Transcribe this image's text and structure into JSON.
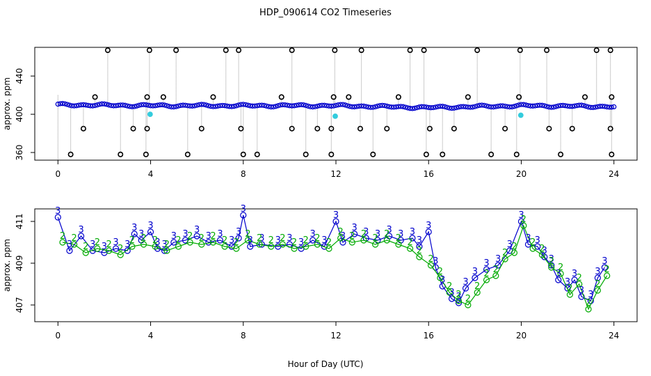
{
  "chart_data": [
    {
      "type": "scatter",
      "panel": "top",
      "title": "HDP_090614  CO2 Timeseries",
      "xlabel": "",
      "ylabel": "approx. ppm",
      "xlim": [
        -1,
        25
      ],
      "ylim": [
        352,
        470
      ],
      "xticks": [
        "0",
        "4",
        "8",
        "12",
        "16",
        "20",
        "24"
      ],
      "yticks": [
        "360",
        "400",
        "440"
      ],
      "grid": false,
      "colors": {
        "main": "#0000cc",
        "highlight": "#33ccdd",
        "outlier": "#000000",
        "connector": "#999999"
      },
      "baseline": {
        "x_start": 0,
        "x_end": 24,
        "levels": [
          [
            0,
            410
          ],
          [
            4,
            409
          ],
          [
            8,
            409
          ],
          [
            12,
            409
          ],
          [
            16,
            407
          ],
          [
            20,
            409
          ],
          [
            24,
            408
          ]
        ]
      },
      "high_outliers": [
        2.15,
        3.95,
        5.1,
        7.25,
        7.8,
        10.1,
        11.95,
        13.1,
        15.2,
        15.8,
        18.1,
        19.95,
        21.1,
        23.25,
        23.85
      ],
      "low_outliers": [
        0.55,
        2.7,
        3.8,
        5.6,
        8.0,
        8.6,
        10.7,
        11.8,
        13.6,
        15.9,
        16.6,
        18.7,
        19.8,
        21.7,
        23.9
      ],
      "mid_high_outliers": [
        1.6,
        3.85,
        4.55,
        6.7,
        9.65,
        11.9,
        12.55,
        14.7,
        17.7,
        19.9,
        22.75,
        23.9
      ],
      "mid_low_outliers": [
        1.1,
        3.25,
        3.85,
        6.2,
        7.9,
        10.1,
        11.2,
        11.8,
        13.05,
        14.2,
        16.05,
        17.1,
        19.3,
        21.2,
        22.2,
        23.85
      ],
      "low_values": {
        "high": 467,
        "mid_high": 418,
        "mid_low": 385,
        "low": 358
      },
      "highlight_points": [
        [
          3.98,
          400
        ],
        [
          11.97,
          398
        ],
        [
          19.98,
          399
        ]
      ]
    },
    {
      "type": "line",
      "panel": "bottom",
      "title": "",
      "xlabel": "Hour of Day (UTC)",
      "ylabel": "approx. ppm",
      "xlim": [
        -1,
        25
      ],
      "ylim": [
        406.2,
        411.6
      ],
      "xticks": [
        "0",
        "4",
        "8",
        "12",
        "16",
        "20",
        "24"
      ],
      "yticks": [
        "407",
        "409",
        "411"
      ],
      "grid": false,
      "series": [
        {
          "name": "3",
          "color": "#0000cc",
          "x": [
            0,
            0.5,
            1,
            1.5,
            2,
            2.5,
            3,
            3.3,
            3.6,
            4,
            4.3,
            4.6,
            5,
            5.5,
            6,
            6.5,
            7,
            7.5,
            7.8,
            8,
            8.3,
            8.8,
            9.5,
            10,
            10.5,
            11,
            11.5,
            12,
            12.3,
            12.8,
            13.3,
            13.8,
            14.3,
            14.8,
            15.3,
            15.6,
            16,
            16.3,
            16.6,
            17,
            17.3,
            17.6,
            18,
            18.5,
            19,
            19.5,
            20,
            20.3,
            20.7,
            21,
            21.3,
            21.6,
            22,
            22.3,
            22.6,
            23,
            23.3,
            23.6
          ],
          "y": [
            411.2,
            409.6,
            410.3,
            409.6,
            409.5,
            409.7,
            409.6,
            410.4,
            410.1,
            410.5,
            409.7,
            409.6,
            410.0,
            410.1,
            410.3,
            410.0,
            410.1,
            409.8,
            410.2,
            411.3,
            409.8,
            409.9,
            409.8,
            409.9,
            409.7,
            410.1,
            409.8,
            411.0,
            410.0,
            410.4,
            410.2,
            410.1,
            410.3,
            410.1,
            410.2,
            409.8,
            410.5,
            408.8,
            407.9,
            407.3,
            407.1,
            407.8,
            408.3,
            408.7,
            408.9,
            409.6,
            411.0,
            409.9,
            409.8,
            409.3,
            408.9,
            408.2,
            407.8,
            408.2,
            407.4,
            407.2,
            408.3,
            408.8
          ]
        },
        {
          "name": "2",
          "color": "#00aa00",
          "x": [
            0.2,
            0.7,
            1.2,
            1.7,
            2.2,
            2.7,
            3.2,
            3.7,
            4.2,
            4.7,
            5.2,
            5.7,
            6.2,
            6.7,
            7.2,
            7.7,
            8.2,
            8.7,
            9.2,
            9.7,
            10.2,
            10.7,
            11.2,
            11.7,
            12.2,
            12.7,
            13.2,
            13.7,
            14.2,
            14.7,
            15.2,
            15.6,
            16.1,
            16.5,
            16.9,
            17.3,
            17.7,
            18.1,
            18.5,
            18.9,
            19.3,
            19.7,
            20.1,
            20.5,
            20.9,
            21.3,
            21.7,
            22.1,
            22.5,
            22.9,
            23.3,
            23.7
          ],
          "y": [
            410.0,
            409.9,
            409.5,
            409.7,
            409.6,
            409.4,
            409.8,
            409.9,
            409.8,
            409.6,
            409.8,
            410.0,
            409.9,
            410.0,
            409.8,
            409.7,
            410.1,
            409.9,
            409.8,
            409.9,
            409.7,
            409.8,
            409.9,
            409.7,
            410.2,
            410.0,
            410.1,
            409.9,
            410.1,
            409.9,
            409.7,
            409.3,
            408.9,
            408.3,
            407.6,
            407.2,
            407.0,
            407.6,
            408.2,
            408.4,
            409.2,
            409.5,
            410.8,
            409.7,
            409.4,
            408.8,
            408.5,
            407.5,
            408.0,
            406.8,
            407.7,
            408.4
          ]
        }
      ]
    }
  ]
}
